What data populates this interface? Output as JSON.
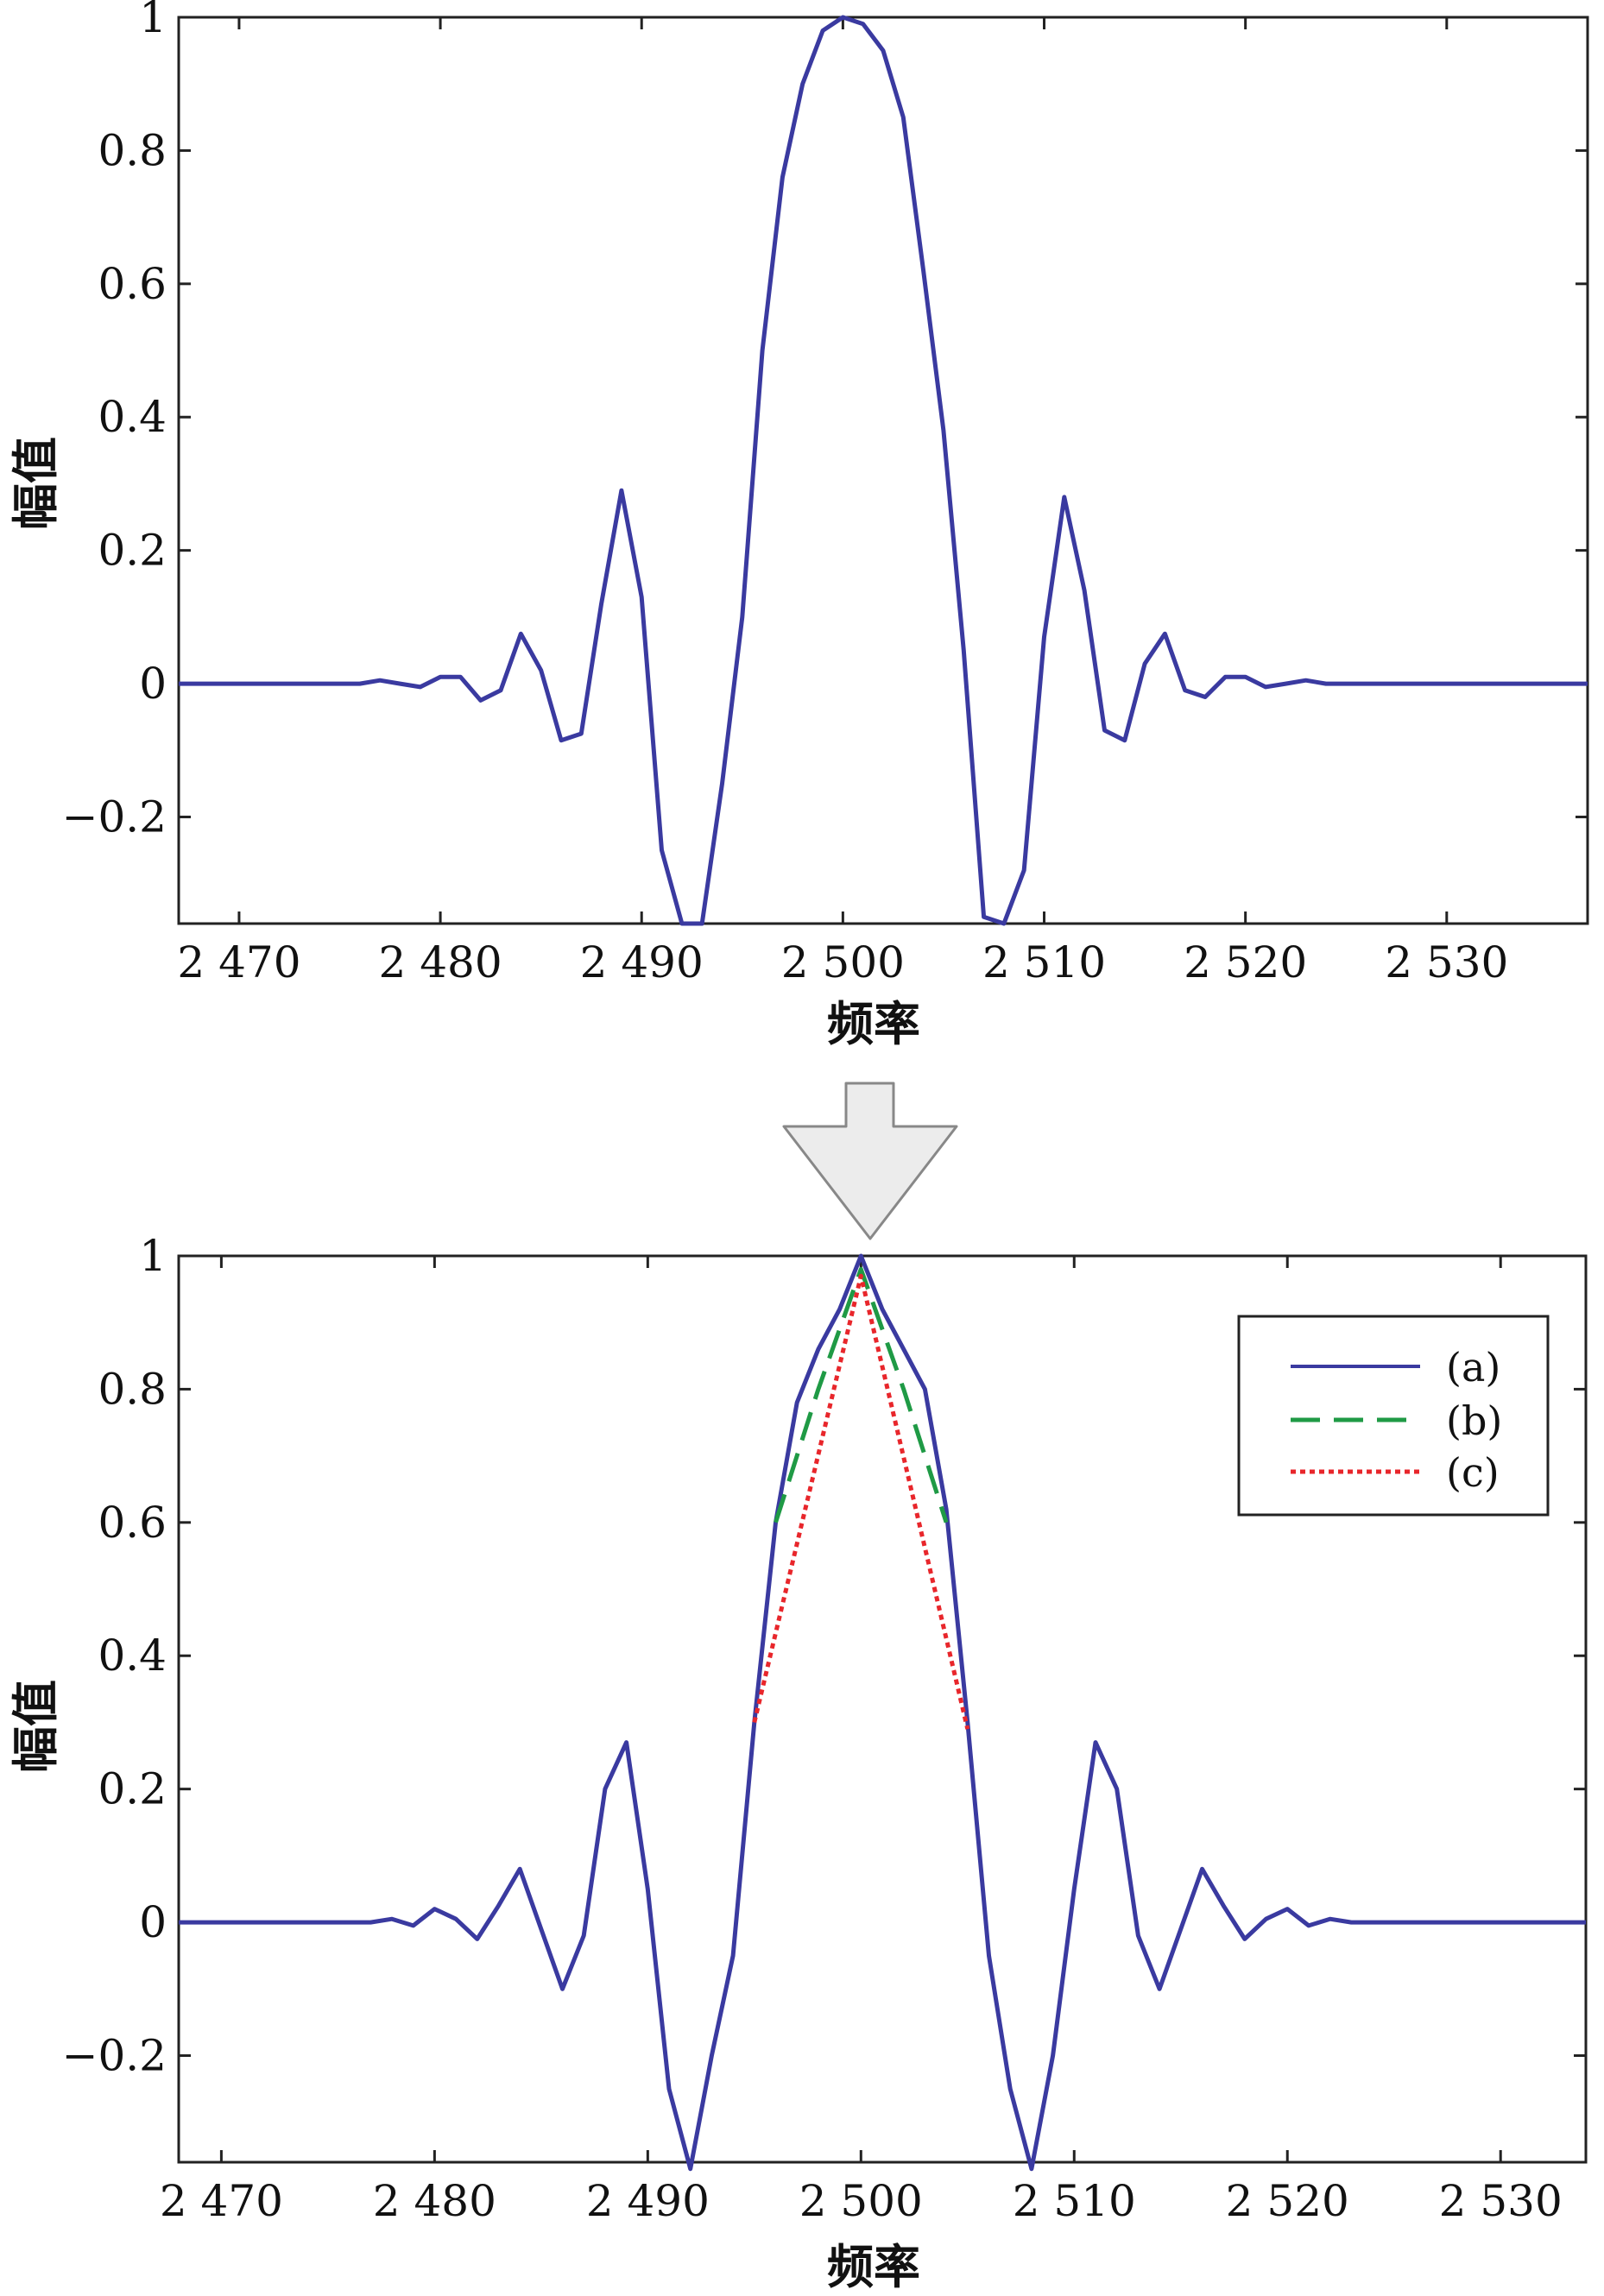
{
  "colors": {
    "series_a": "#3a3aa0",
    "series_b": "#1f9a45",
    "series_c": "#e8262b",
    "axes": "#222222",
    "arrow_fill": "#ececec",
    "arrow_stroke": "#888888"
  },
  "chart_data": [
    {
      "type": "line",
      "xlabel": "频率",
      "ylabel": "幅值",
      "xlim": [
        2467,
        2537
      ],
      "ylim": [
        -0.36,
        1.0
      ],
      "xticks": [
        2470,
        2480,
        2490,
        2500,
        2510,
        2520,
        2530
      ],
      "xtick_labels": [
        "2 470",
        "2 480",
        "2 490",
        "2 500",
        "2 510",
        "2 520",
        "2 530"
      ],
      "yticks": [
        1,
        0.8,
        0.6,
        0.4,
        0.2,
        0,
        -0.2
      ],
      "ytick_labels": [
        "1",
        "0.8",
        "0.6",
        "0.4",
        "0.2",
        "0",
        "−0.2"
      ],
      "grid": false,
      "series": [
        {
          "x": [
            2467,
            2476,
            2477,
            2478,
            2479,
            2480,
            2481,
            2482,
            2483,
            2484,
            2485,
            2486,
            2487,
            2488,
            2489,
            2490,
            2491,
            2492,
            2493,
            2494,
            2495,
            2496,
            2497,
            2498,
            2499,
            2500,
            2501,
            2502,
            2503,
            2504,
            2505,
            2506,
            2507,
            2508,
            2509,
            2510,
            2511,
            2512,
            2513,
            2514,
            2515,
            2516,
            2517,
            2518,
            2519,
            2520,
            2521,
            2522,
            2523,
            2524,
            2525,
            2537
          ],
          "y": [
            0,
            0,
            0.005,
            0,
            -0.005,
            0.01,
            0.01,
            -0.025,
            -0.01,
            0.075,
            0.02,
            -0.085,
            -0.075,
            0.12,
            0.29,
            0.13,
            -0.25,
            -0.36,
            -0.36,
            -0.15,
            0.1,
            0.5,
            0.76,
            0.9,
            0.98,
            1.0,
            0.99,
            0.95,
            0.85,
            0.62,
            0.38,
            0.05,
            -0.35,
            -0.36,
            -0.28,
            0.07,
            0.28,
            0.14,
            -0.07,
            -0.085,
            0.03,
            0.075,
            -0.01,
            -0.02,
            0.01,
            0.01,
            -0.005,
            0,
            0.005,
            0,
            0,
            0
          ]
        }
      ]
    },
    {
      "type": "line",
      "xlabel": "频率",
      "ylabel": "幅值",
      "xlim": [
        2468,
        2534
      ],
      "ylim": [
        -0.36,
        1.0
      ],
      "xticks": [
        2470,
        2480,
        2490,
        2500,
        2510,
        2520,
        2530
      ],
      "xtick_labels": [
        "2 470",
        "2 480",
        "2 490",
        "2 500",
        "2 510",
        "2 520",
        "2 530"
      ],
      "yticks": [
        1,
        0.8,
        0.6,
        0.4,
        0.2,
        0,
        -0.2
      ],
      "ytick_labels": [
        "1",
        "0.8",
        "0.6",
        "0.4",
        "0.2",
        "0",
        "−0.2"
      ],
      "grid": false,
      "legend": {
        "placement": "top-right"
      },
      "series": [
        {
          "name": "(a)",
          "style": "solid",
          "x": [
            2468,
            2477,
            2478,
            2479,
            2480,
            2481,
            2482,
            2483,
            2484,
            2485,
            2486,
            2487,
            2488,
            2489,
            2490,
            2491,
            2492,
            2493,
            2494,
            2495,
            2496,
            2497,
            2498,
            2499,
            2500,
            2501,
            2502,
            2503,
            2504,
            2505,
            2506,
            2507,
            2508,
            2509,
            2510,
            2511,
            2512,
            2513,
            2514,
            2515,
            2516,
            2517,
            2518,
            2519,
            2520,
            2521,
            2522,
            2523,
            2524,
            2534
          ],
          "y": [
            0,
            0,
            0.005,
            -0.005,
            0.02,
            0.005,
            -0.025,
            0.025,
            0.08,
            -0.01,
            -0.1,
            -0.02,
            0.2,
            0.27,
            0.05,
            -0.25,
            -0.37,
            -0.2,
            -0.05,
            0.3,
            0.6,
            0.78,
            0.86,
            0.92,
            1.0,
            0.92,
            0.86,
            0.8,
            0.62,
            0.3,
            -0.05,
            -0.25,
            -0.37,
            -0.2,
            0.05,
            0.27,
            0.2,
            -0.02,
            -0.1,
            -0.01,
            0.08,
            0.025,
            -0.025,
            0.005,
            0.02,
            -0.005,
            0.005,
            0,
            0,
            0
          ]
        },
        {
          "name": "(b)",
          "style": "dashed",
          "x": [
            2496,
            2498,
            2500,
            2502,
            2504
          ],
          "y": [
            0.6,
            0.8,
            0.98,
            0.8,
            0.6
          ]
        },
        {
          "name": "(c)",
          "style": "dotted",
          "x": [
            2495,
            2500,
            2505
          ],
          "y": [
            0.3,
            0.97,
            0.29
          ]
        }
      ]
    }
  ]
}
